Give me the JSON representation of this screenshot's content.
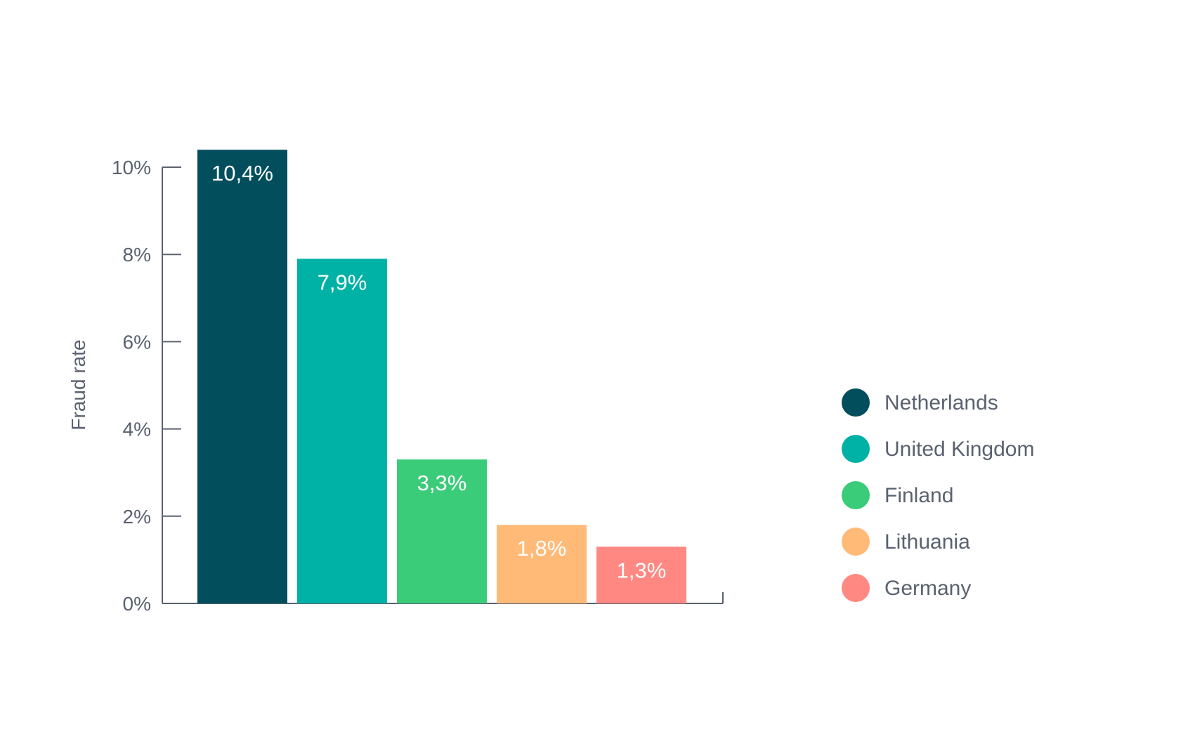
{
  "chart_data": {
    "type": "bar",
    "title": "",
    "xlabel": "",
    "ylabel": "Fraud rate",
    "ylim": [
      0,
      10
    ],
    "yticks": [
      0,
      2,
      4,
      6,
      8,
      10
    ],
    "ytick_labels": [
      "0%",
      "2%",
      "4%",
      "6%",
      "8%",
      "10%"
    ],
    "categories": [
      "Netherlands",
      "United Kingdom",
      "Finland",
      "Lithuania",
      "Germany"
    ],
    "values": [
      10.4,
      7.9,
      3.3,
      1.8,
      1.3
    ],
    "data_labels": [
      "10,4%",
      "7,9%",
      "3,3%",
      "1,8%",
      "1,3%"
    ],
    "colors": [
      "#024E5C",
      "#00B2A6",
      "#3ACC78",
      "#FFBA78",
      "#FF8882"
    ],
    "legend": {
      "placement": "right"
    },
    "grid": false
  }
}
